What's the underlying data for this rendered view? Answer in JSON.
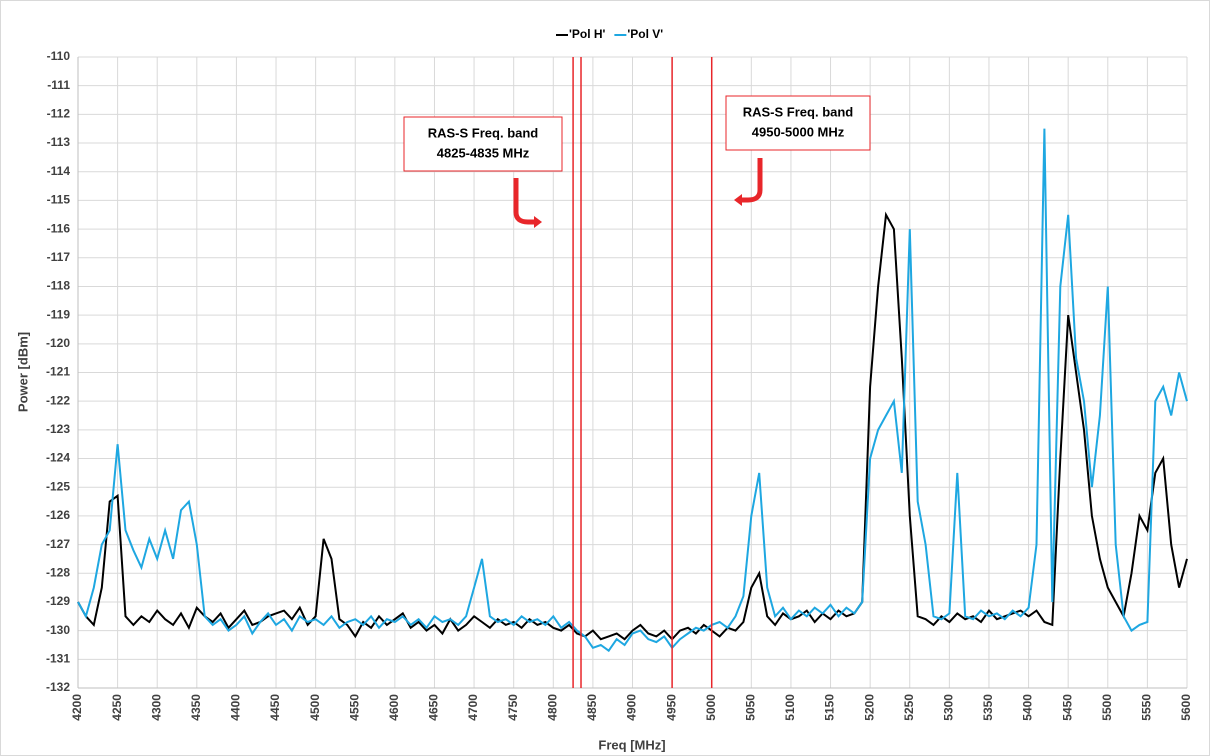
{
  "chart_data": {
    "type": "line",
    "xlabel": "Freq [MHz]",
    "ylabel": "Power [dBm]",
    "xlim": [
      4200,
      5600
    ],
    "ylim": [
      -132,
      -110
    ],
    "xticks": [
      4200,
      4250,
      4300,
      4350,
      4400,
      4450,
      4500,
      4550,
      4600,
      4650,
      4700,
      4750,
      4800,
      4850,
      4900,
      4950,
      5000,
      5050,
      5100,
      5150,
      5200,
      5250,
      5300,
      5350,
      5400,
      5450,
      5500,
      5550,
      5600
    ],
    "yticks": [
      -110,
      -111,
      -112,
      -113,
      -114,
      -115,
      -116,
      -117,
      -118,
      -119,
      -120,
      -121,
      -122,
      -123,
      -124,
      -125,
      -126,
      -127,
      -128,
      -129,
      -130,
      -131,
      -132
    ],
    "grid": true,
    "legend": "top",
    "x": [
      4200,
      4210,
      4220,
      4230,
      4240,
      4250,
      4260,
      4270,
      4280,
      4290,
      4300,
      4310,
      4320,
      4330,
      4340,
      4350,
      4360,
      4370,
      4380,
      4390,
      4400,
      4410,
      4420,
      4430,
      4440,
      4450,
      4460,
      4470,
      4480,
      4490,
      4500,
      4510,
      4520,
      4530,
      4540,
      4550,
      4560,
      4570,
      4580,
      4590,
      4600,
      4610,
      4620,
      4630,
      4640,
      4650,
      4660,
      4670,
      4680,
      4690,
      4700,
      4710,
      4720,
      4730,
      4740,
      4750,
      4760,
      4770,
      4780,
      4790,
      4800,
      4810,
      4820,
      4830,
      4840,
      4850,
      4860,
      4870,
      4880,
      4890,
      4900,
      4910,
      4920,
      4930,
      4940,
      4950,
      4960,
      4970,
      4980,
      4990,
      5000,
      5010,
      5020,
      5030,
      5040,
      5050,
      5060,
      5070,
      5080,
      5090,
      5100,
      5110,
      5120,
      5130,
      5140,
      5150,
      5160,
      5170,
      5180,
      5190,
      5200,
      5210,
      5220,
      5230,
      5240,
      5250,
      5260,
      5270,
      5280,
      5290,
      5300,
      5310,
      5320,
      5330,
      5340,
      5350,
      5360,
      5370,
      5380,
      5390,
      5400,
      5410,
      5420,
      5430,
      5440,
      5450,
      5460,
      5470,
      5480,
      5490,
      5500,
      5510,
      5520,
      5530,
      5540,
      5550,
      5560,
      5570,
      5580,
      5590,
      5600
    ],
    "series": [
      {
        "name": "'Pol H'",
        "color": "#000000",
        "values": [
          -129,
          -129.5,
          -129.8,
          -128.5,
          -125.5,
          -125.3,
          -129.5,
          -129.8,
          -129.5,
          -129.7,
          -129.3,
          -129.6,
          -129.8,
          -129.4,
          -129.9,
          -129.2,
          -129.5,
          -129.7,
          -129.4,
          -129.9,
          -129.6,
          -129.3,
          -129.8,
          -129.7,
          -129.5,
          -129.4,
          -129.3,
          -129.6,
          -129.2,
          -129.8,
          -129.5,
          -126.8,
          -127.5,
          -129.6,
          -129.8,
          -130.2,
          -129.7,
          -129.9,
          -129.5,
          -129.8,
          -129.6,
          -129.4,
          -129.9,
          -129.7,
          -130.0,
          -129.8,
          -130.1,
          -129.6,
          -130.0,
          -129.8,
          -129.5,
          -129.7,
          -129.9,
          -129.6,
          -129.8,
          -129.7,
          -129.9,
          -129.6,
          -129.8,
          -129.7,
          -129.9,
          -130.0,
          -129.8,
          -130.1,
          -130.2,
          -130.0,
          -130.3,
          -130.2,
          -130.1,
          -130.3,
          -130.0,
          -129.8,
          -130.1,
          -130.2,
          -130.0,
          -130.3,
          -130.0,
          -129.9,
          -130.1,
          -129.8,
          -130.0,
          -130.2,
          -129.9,
          -130.0,
          -129.7,
          -128.5,
          -128.0,
          -129.5,
          -129.8,
          -129.4,
          -129.6,
          -129.5,
          -129.3,
          -129.7,
          -129.4,
          -129.6,
          -129.3,
          -129.5,
          -129.4,
          -129.0,
          -121.5,
          -118,
          -115.5,
          -116,
          -120.5,
          -126,
          -129.5,
          -129.6,
          -129.8,
          -129.5,
          -129.7,
          -129.4,
          -129.6,
          -129.5,
          -129.7,
          -129.3,
          -129.6,
          -129.5,
          -129.4,
          -129.3,
          -129.5,
          -129.3,
          -129.7,
          -129.8,
          -124,
          -119,
          -121,
          -123,
          -126,
          -127.5,
          -128.5,
          -129,
          -129.5,
          -128,
          -126,
          -126.5,
          -124.5,
          -124,
          -127,
          -128.5,
          -127.5
        ]
      },
      {
        "name": "'Pol V'",
        "color": "#1ea7e1",
        "values": [
          -129,
          -129.5,
          -128.5,
          -127,
          -126.5,
          -123.5,
          -126.5,
          -127.2,
          -127.8,
          -126.8,
          -127.5,
          -126.5,
          -127.5,
          -125.8,
          -125.5,
          -127,
          -129.5,
          -129.8,
          -129.6,
          -130.0,
          -129.8,
          -129.5,
          -130.1,
          -129.7,
          -129.4,
          -129.8,
          -129.6,
          -130.0,
          -129.5,
          -129.7,
          -129.6,
          -129.8,
          -129.5,
          -129.9,
          -129.7,
          -129.6,
          -129.8,
          -129.5,
          -129.9,
          -129.6,
          -129.7,
          -129.5,
          -129.8,
          -129.6,
          -129.9,
          -129.5,
          -129.7,
          -129.6,
          -129.8,
          -129.5,
          -128.5,
          -127.5,
          -129.5,
          -129.7,
          -129.6,
          -129.8,
          -129.5,
          -129.7,
          -129.6,
          -129.8,
          -129.5,
          -129.9,
          -129.7,
          -130.0,
          -130.2,
          -130.6,
          -130.5,
          -130.7,
          -130.3,
          -130.5,
          -130.1,
          -130.0,
          -130.3,
          -130.4,
          -130.2,
          -130.6,
          -130.3,
          -130.1,
          -129.9,
          -130.0,
          -129.8,
          -129.7,
          -129.9,
          -129.5,
          -128.8,
          -126,
          -124.5,
          -128.5,
          -129.5,
          -129.2,
          -129.6,
          -129.3,
          -129.5,
          -129.2,
          -129.4,
          -129.1,
          -129.5,
          -129.2,
          -129.4,
          -129.0,
          -124,
          -123,
          -122.5,
          -122,
          -124.5,
          -116,
          -125.5,
          -127,
          -129.5,
          -129.6,
          -129.4,
          -124.5,
          -129.5,
          -129.6,
          -129.3,
          -129.5,
          -129.4,
          -129.6,
          -129.3,
          -129.5,
          -129.2,
          -127,
          -112.5,
          -129,
          -118,
          -115.5,
          -120.5,
          -122,
          -125,
          -122.5,
          -118,
          -127,
          -129.5,
          -130,
          -129.8,
          -129.7,
          -122,
          -121.5,
          -122.5,
          -121,
          -122
        ]
      }
    ],
    "vlines": {
      "color": "#e8262a",
      "x": [
        4825,
        4835,
        4950,
        5000
      ]
    },
    "annotations": [
      {
        "text": [
          "RAS-S Freq. band",
          "4825-4835 MHz"
        ]
      },
      {
        "text": [
          "RAS-S Freq. band",
          "4950-5000 MHz"
        ]
      }
    ]
  }
}
